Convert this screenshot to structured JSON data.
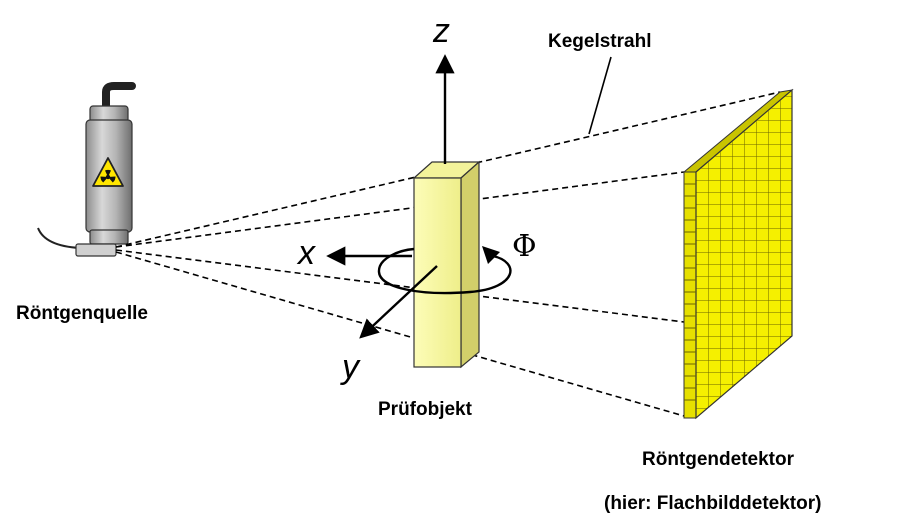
{
  "labels": {
    "beam": "Kegelstrahl",
    "source": "Röntgenquelle",
    "object": "Prüfobjekt",
    "detector": "Röntgendetektor",
    "detector_note": "(hier: Flachbilddetektor)"
  },
  "axes": {
    "z": "z",
    "x": "x",
    "y": "y",
    "rotation": "Φ"
  },
  "colors": {
    "detector_face": "#f5f000",
    "detector_side": "#c9c400",
    "object_front": "#fcfca8",
    "object_side": "#d2cf6a",
    "tube_body": "#a8a8a8",
    "warning_yellow": "#ffe600"
  },
  "icons": [
    "radiation-icon"
  ]
}
